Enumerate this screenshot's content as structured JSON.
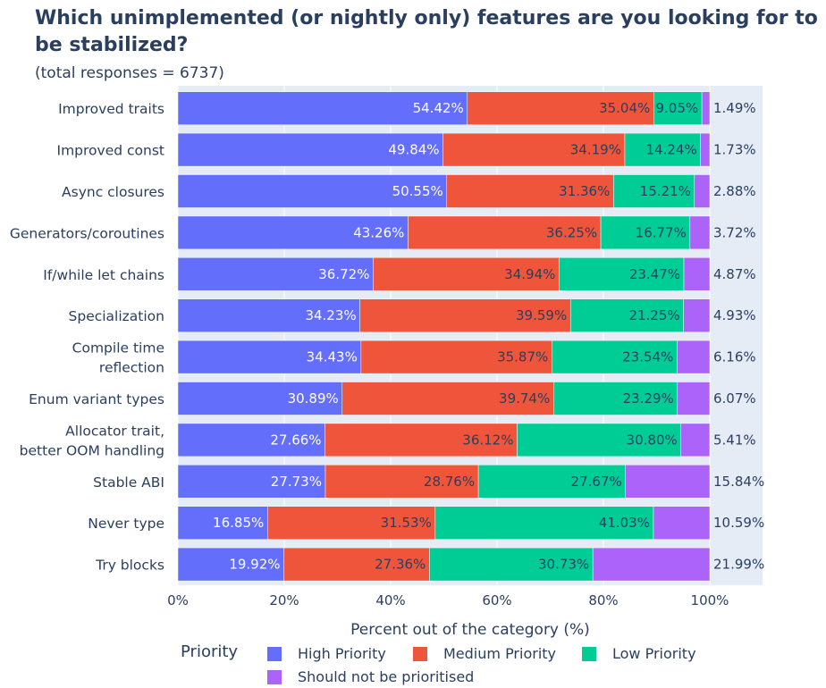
{
  "title": "Which unimplemented  (or nightly only) features are you looking for to be stabilized?",
  "subtitle": "(total responses = 6737)",
  "legend_title": "Priority",
  "colors": {
    "High Priority": "#636efa",
    "Medium Priority": "#ef553b",
    "Low Priority": "#00cc96",
    "Should not be prioritised": "#ab63fa"
  },
  "chart_data": {
    "type": "bar",
    "orientation": "horizontal",
    "stacked": true,
    "categories": [
      "Improved traits",
      "Improved const",
      "Async closures",
      "Generators/coroutines",
      "If/while let chains",
      "Specialization",
      "Compile time reflection",
      "Enum variant types",
      "Allocator trait, better OOM handling",
      "Stable ABI",
      "Never type",
      "Try blocks"
    ],
    "series": [
      {
        "name": "High Priority",
        "values": [
          54.42,
          49.84,
          50.55,
          43.26,
          36.72,
          34.23,
          34.43,
          30.89,
          27.66,
          27.73,
          16.85,
          19.92
        ]
      },
      {
        "name": "Medium Priority",
        "values": [
          35.04,
          34.19,
          31.36,
          36.25,
          34.94,
          39.59,
          35.87,
          39.74,
          36.12,
          28.76,
          31.53,
          27.36
        ]
      },
      {
        "name": "Low Priority",
        "values": [
          9.05,
          14.24,
          15.21,
          16.77,
          23.47,
          21.25,
          23.54,
          23.29,
          30.8,
          27.67,
          41.03,
          30.73
        ]
      },
      {
        "name": "Should not be prioritised",
        "values": [
          1.49,
          1.73,
          2.88,
          3.72,
          4.87,
          4.93,
          6.16,
          6.07,
          5.41,
          15.84,
          10.59,
          21.99
        ]
      }
    ],
    "xlabel": "Percent out of the category (%)",
    "xlim": [
      0,
      100
    ],
    "xticks": [
      "0%",
      "20%",
      "40%",
      "60%",
      "80%",
      "100%"
    ],
    "legend_position": "bottom"
  }
}
